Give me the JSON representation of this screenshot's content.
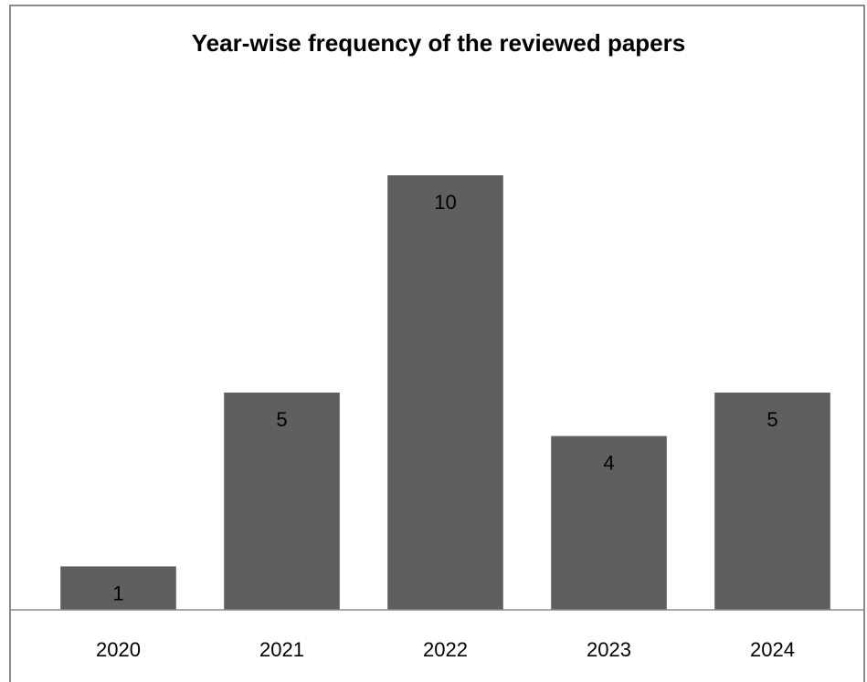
{
  "chart_data": {
    "type": "bar",
    "title": "Year-wise frequency of the reviewed papers",
    "categories": [
      "2020",
      "2021",
      "2022",
      "2023",
      "2024"
    ],
    "values": [
      1,
      5,
      10,
      4,
      5
    ],
    "data_labels": [
      "1",
      "5",
      "10",
      "4",
      "5"
    ],
    "xlabel": "",
    "ylabel": "",
    "ylim": [
      0,
      10
    ],
    "grid": false,
    "legend": "none",
    "bar_color": "#5f5f5f",
    "axis_color": "#8c8c8c"
  }
}
